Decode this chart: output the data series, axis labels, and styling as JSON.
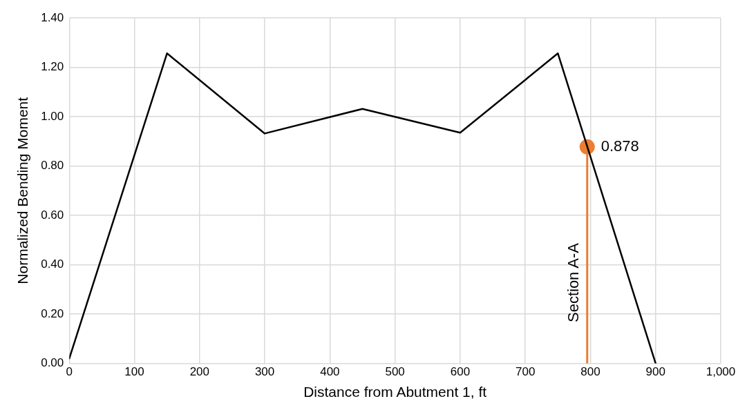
{
  "chart_data": {
    "type": "line",
    "xlabel": "Distance from Abutment 1, ft",
    "ylabel": "Normalized Bending Moment",
    "xlim": [
      0,
      1000
    ],
    "xticks": [
      0,
      100,
      200,
      300,
      400,
      500,
      600,
      700,
      800,
      900,
      {
        "value": 1000,
        "label": "1,000"
      }
    ],
    "ylim": [
      0,
      1.4
    ],
    "yticks": [
      {
        "value": 0,
        "label": "0.00"
      },
      {
        "value": 0.2,
        "label": "0.20"
      },
      {
        "value": 0.4,
        "label": "0.40"
      },
      {
        "value": 0.6,
        "label": "0.60"
      },
      {
        "value": 0.8,
        "label": "0.80"
      },
      {
        "value": 1,
        "label": "1.00"
      },
      {
        "value": 1.2,
        "label": "1.20"
      },
      {
        "value": 1.4,
        "label": "1.40"
      }
    ],
    "grid": true,
    "legend": false,
    "marker": "none",
    "line_style": "solid",
    "series": [
      {
        "type": "line",
        "color": "#000000",
        "x": [
          0,
          150,
          300,
          450,
          600,
          750,
          900
        ],
        "values": [
          0.02,
          1.257,
          0.932,
          1.032,
          0.935,
          1.257,
          0.0
        ]
      },
      {
        "type": "line",
        "name": "Section A-A",
        "color": "#ed7d31",
        "x": [
          795,
          795
        ],
        "values": [
          0,
          0.878
        ]
      },
      {
        "type": "scatter",
        "marker": "circle",
        "color": "#ed7d31",
        "x": [
          795
        ],
        "values": [
          0.878
        ],
        "value_labels": [
          "0.878"
        ]
      }
    ]
  }
}
